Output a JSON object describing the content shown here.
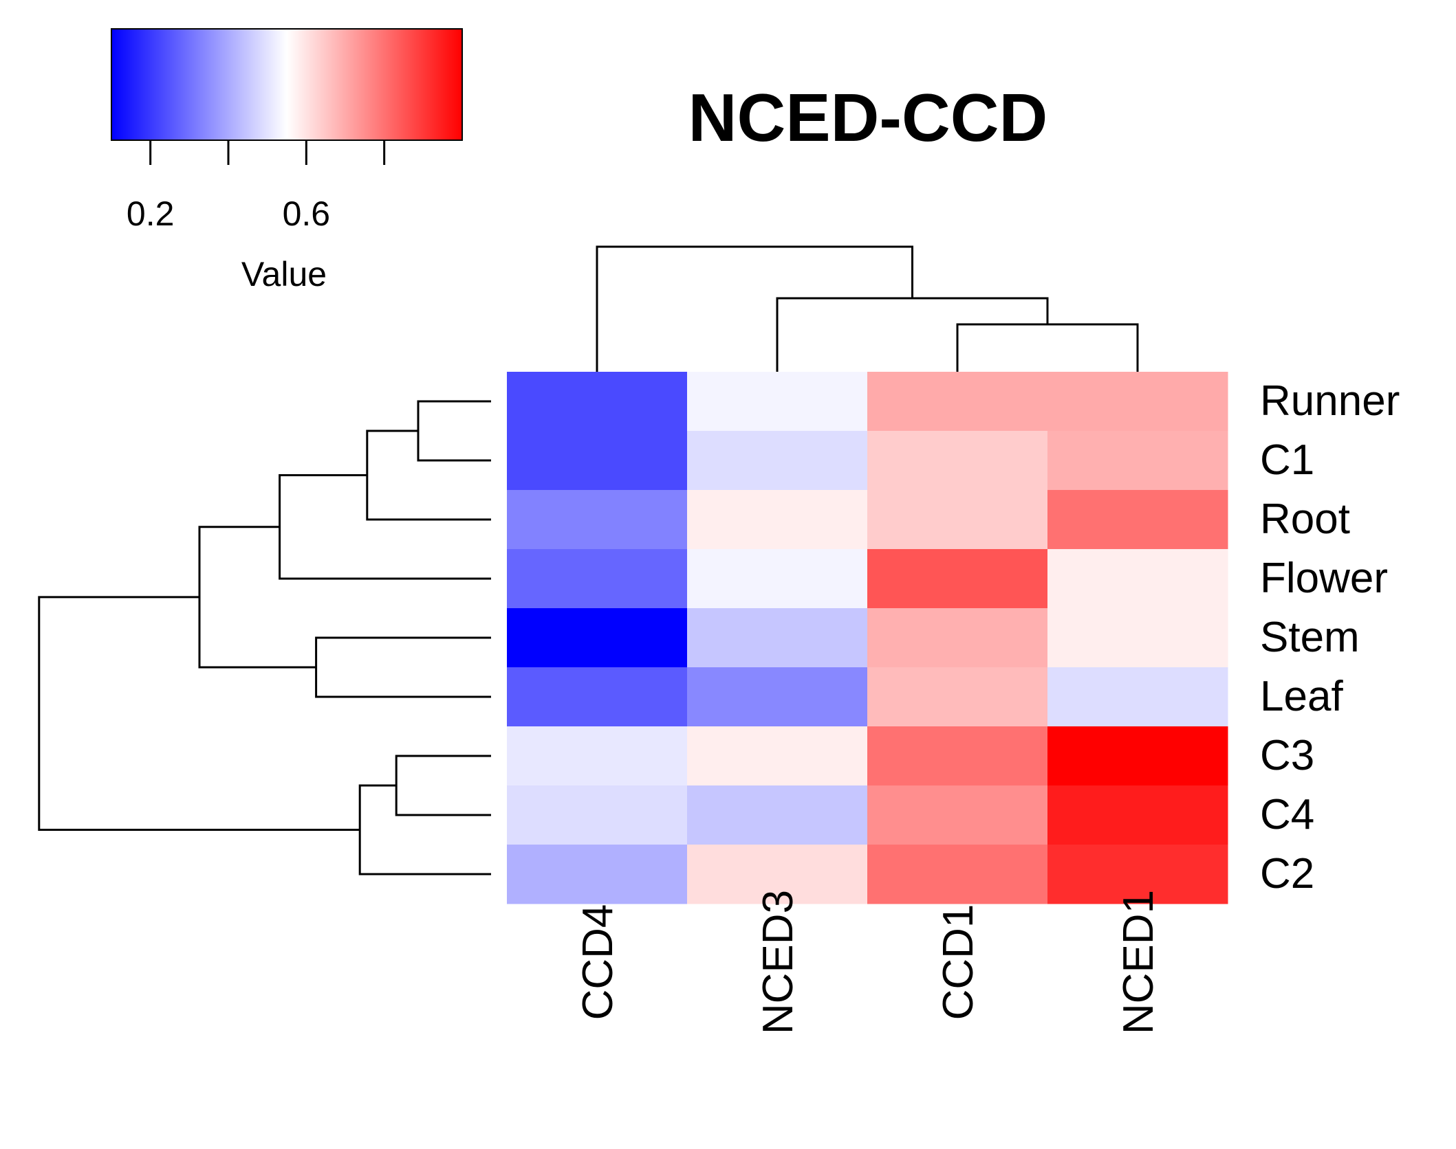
{
  "chart_data": {
    "type": "heatmap",
    "title": "NCED-CCD",
    "columns": [
      "CCD4",
      "NCED3",
      "CCD1",
      "NCED1"
    ],
    "rows": [
      "Runner",
      "C1",
      "Root",
      "Flower",
      "Stem",
      "Leaf",
      "C3",
      "C4",
      "C2"
    ],
    "values": [
      [
        0.23,
        0.53,
        0.7,
        0.7
      ],
      [
        0.23,
        0.49,
        0.64,
        0.69
      ],
      [
        0.33,
        0.58,
        0.64,
        0.8
      ],
      [
        0.28,
        0.53,
        0.85,
        0.58
      ],
      [
        0.1,
        0.45,
        0.69,
        0.58
      ],
      [
        0.26,
        0.34,
        0.67,
        0.49
      ],
      [
        0.51,
        0.58,
        0.8,
        1.0
      ],
      [
        0.49,
        0.45,
        0.75,
        0.95
      ],
      [
        0.41,
        0.61,
        0.8,
        0.92
      ]
    ],
    "color_scale": {
      "low": "#0000ff",
      "mid": "#ffffff",
      "high": "#ff0000",
      "range": [
        0.1,
        1.0
      ]
    },
    "legend": {
      "label": "Value",
      "ticks": [
        0.2,
        0.4,
        0.6,
        0.8
      ],
      "tick_labels": [
        "0.2",
        "",
        "0.6",
        ""
      ]
    },
    "column_dendrogram": [
      {
        "a": 2,
        "b": 3,
        "h": 1
      },
      {
        "a": 1,
        "b": "m0",
        "h": 2
      },
      {
        "a": 0,
        "b": "m1",
        "h": 3
      }
    ],
    "row_dendrogram": [
      {
        "a": 0,
        "b": 1,
        "h": 1.0
      },
      {
        "a": "m0",
        "b": 2,
        "h": 1.7
      },
      {
        "a": "m1",
        "b": 3,
        "h": 2.9
      },
      {
        "a": 6,
        "b": 7,
        "h": 1.3
      },
      {
        "a": 4,
        "b": 5,
        "h": 2.4
      },
      {
        "a": "m3",
        "b": 8,
        "h": 1.8
      },
      {
        "a": "m2",
        "b": "m4",
        "h": 4.0
      },
      {
        "a": "m6",
        "b": "m5",
        "h": 6.2
      }
    ]
  }
}
